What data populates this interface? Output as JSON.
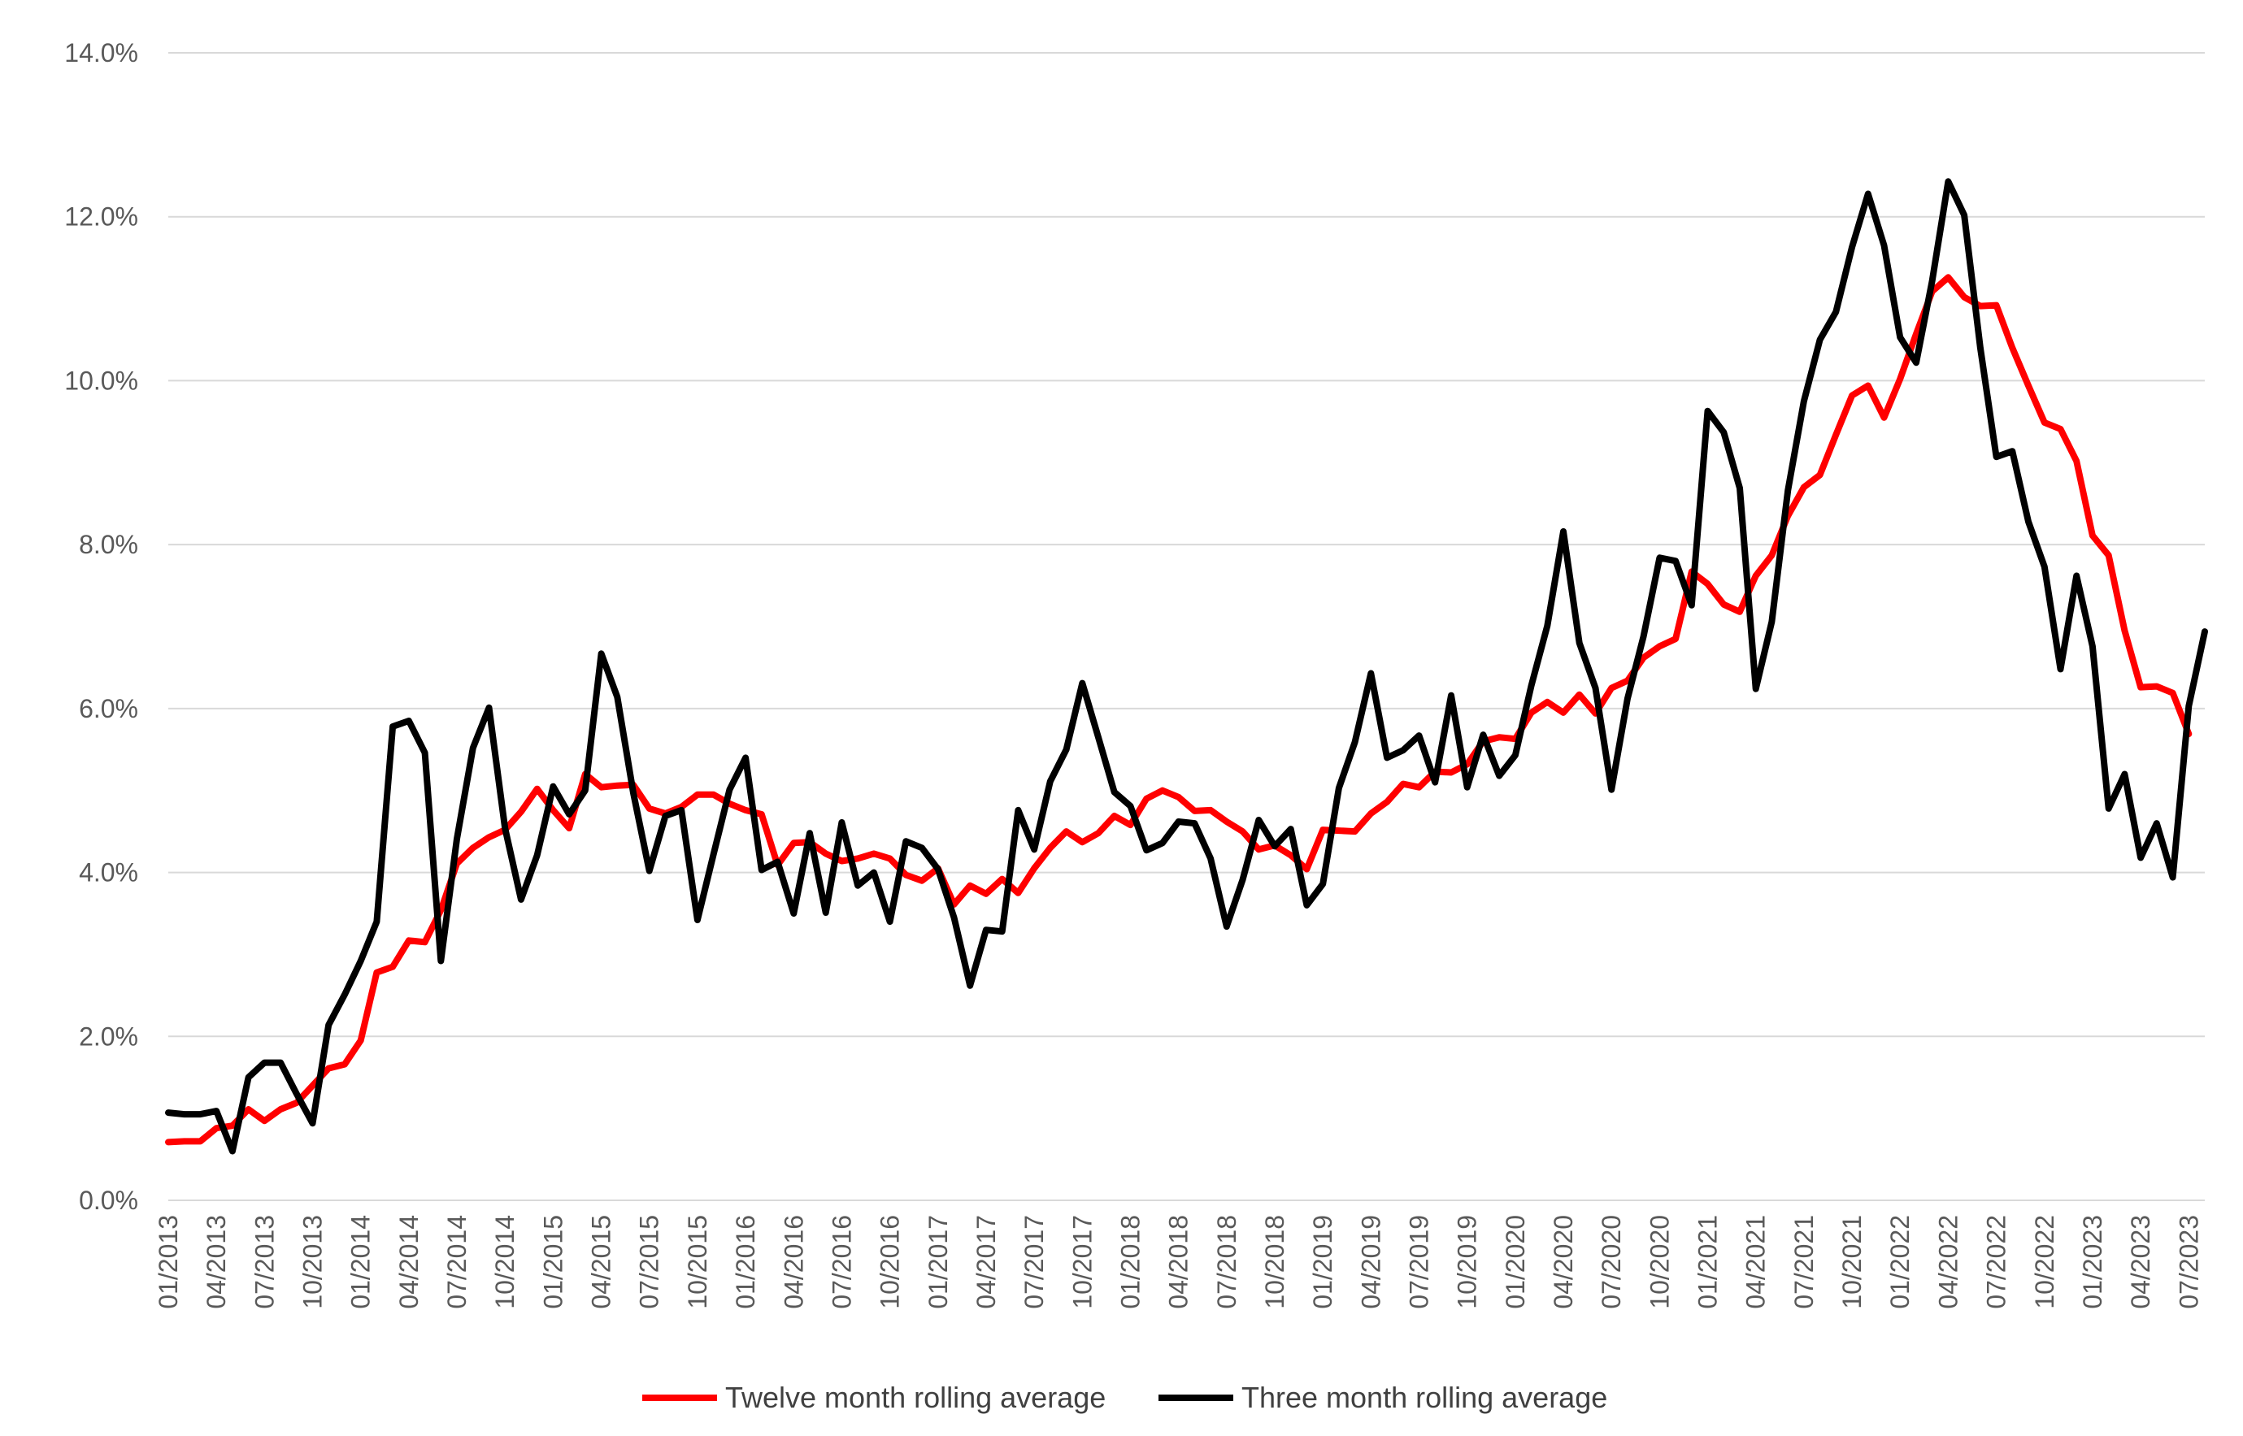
{
  "chart_data": {
    "type": "line",
    "title": "",
    "xlabel": "",
    "ylabel": "",
    "ylim": [
      0,
      0.14
    ],
    "yticks": [
      "0.0%",
      "2.0%",
      "4.0%",
      "6.0%",
      "8.0%",
      "10.0%",
      "12.0%",
      "14.0%"
    ],
    "ytick_values": [
      0,
      0.02,
      0.04,
      0.06,
      0.08,
      0.1,
      0.12,
      0.14
    ],
    "xticks": [
      "01/2013",
      "04/2013",
      "07/2013",
      "10/2013",
      "01/2014",
      "04/2014",
      "07/2014",
      "10/2014",
      "01/2015",
      "04/2015",
      "07/2015",
      "10/2015",
      "01/2016",
      "04/2016",
      "07/2016",
      "10/2016",
      "01/2017",
      "04/2017",
      "07/2017",
      "10/2017",
      "01/2018",
      "04/2018",
      "07/2018",
      "10/2018",
      "01/2019",
      "04/2019",
      "07/2019",
      "10/2019",
      "01/2020",
      "04/2020",
      "07/2020",
      "10/2020",
      "01/2021",
      "04/2021",
      "07/2021",
      "10/2021",
      "01/2022",
      "04/2022",
      "07/2022",
      "10/2022",
      "01/2023",
      "04/2023",
      "07/2023"
    ],
    "x_start": "01/2013",
    "x_end": "08/2023",
    "grid": "horizontal",
    "legend_position": "bottom",
    "series": [
      {
        "name": "Twelve month rolling average",
        "color": "#ff0000",
        "values": [
          0.0071,
          0.0072,
          0.0072,
          0.0088,
          0.0091,
          0.0111,
          0.0097,
          0.0111,
          0.0119,
          0.014,
          0.0161,
          0.0166,
          0.0195,
          0.0278,
          0.0285,
          0.0317,
          0.0315,
          0.0354,
          0.0411,
          0.043,
          0.0443,
          0.0452,
          0.0474,
          0.0502,
          0.0476,
          0.0454,
          0.052,
          0.0504,
          0.0506,
          0.0507,
          0.0478,
          0.0472,
          0.048,
          0.0495,
          0.0495,
          0.0484,
          0.0476,
          0.0471,
          0.0409,
          0.0436,
          0.0437,
          0.0423,
          0.0414,
          0.0417,
          0.0423,
          0.0417,
          0.0397,
          0.039,
          0.0405,
          0.0361,
          0.0384,
          0.0374,
          0.0392,
          0.0375,
          0.0405,
          0.043,
          0.045,
          0.0437,
          0.0448,
          0.0469,
          0.0458,
          0.049,
          0.05,
          0.0492,
          0.0475,
          0.0476,
          0.0462,
          0.045,
          0.0428,
          0.0433,
          0.0421,
          0.0404,
          0.0452,
          0.0451,
          0.045,
          0.0472,
          0.0486,
          0.0508,
          0.0504,
          0.0523,
          0.0522,
          0.0532,
          0.056,
          0.0565,
          0.0563,
          0.0595,
          0.0608,
          0.0595,
          0.0617,
          0.0594,
          0.0625,
          0.0634,
          0.0662,
          0.0676,
          0.0685,
          0.0767,
          0.0752,
          0.0727,
          0.0718,
          0.0762,
          0.0787,
          0.0835,
          0.087,
          0.0885,
          0.0934,
          0.0982,
          0.0994,
          0.0955,
          0.1002,
          0.1057,
          0.1109,
          0.1126,
          0.1102,
          0.1091,
          0.1092,
          0.104,
          0.0994,
          0.0949,
          0.0941,
          0.0902,
          0.0811,
          0.0787,
          0.0695,
          0.0626,
          0.0627,
          0.0619,
          0.0569
        ]
      },
      {
        "name": "Three month rolling average",
        "color": "#000000",
        "values": [
          0.0107,
          0.0105,
          0.0105,
          0.0109,
          0.006,
          0.015,
          0.0168,
          0.0168,
          0.013,
          0.0094,
          0.0214,
          0.0251,
          0.0292,
          0.034,
          0.0578,
          0.0585,
          0.0546,
          0.0292,
          0.0441,
          0.0552,
          0.0601,
          0.0454,
          0.0367,
          0.0421,
          0.0505,
          0.0471,
          0.05,
          0.0667,
          0.0614,
          0.0497,
          0.0402,
          0.0469,
          0.0476,
          0.0342,
          0.0422,
          0.0501,
          0.054,
          0.0403,
          0.0413,
          0.035,
          0.0448,
          0.0351,
          0.0461,
          0.0384,
          0.04,
          0.034,
          0.0438,
          0.043,
          0.0404,
          0.0345,
          0.0262,
          0.033,
          0.0328,
          0.0476,
          0.0428,
          0.0511,
          0.055,
          0.0631,
          0.0565,
          0.0498,
          0.0481,
          0.0427,
          0.0436,
          0.0462,
          0.046,
          0.0417,
          0.0334,
          0.0391,
          0.0464,
          0.0432,
          0.0453,
          0.036,
          0.0386,
          0.0503,
          0.0559,
          0.0643,
          0.054,
          0.0549,
          0.0567,
          0.051,
          0.0616,
          0.0504,
          0.0568,
          0.0518,
          0.0543,
          0.0628,
          0.0701,
          0.0816,
          0.068,
          0.0625,
          0.0501,
          0.0612,
          0.0688,
          0.0784,
          0.078,
          0.0726,
          0.0963,
          0.0937,
          0.0869,
          0.0624,
          0.0706,
          0.0866,
          0.0975,
          0.105,
          0.1084,
          0.1163,
          0.1228,
          0.1165,
          0.1053,
          0.1022,
          0.1122,
          0.1243,
          0.1202,
          0.104,
          0.0907,
          0.0914,
          0.0828,
          0.0773,
          0.0648,
          0.0762,
          0.0676,
          0.0478,
          0.052,
          0.0418,
          0.046,
          0.0394,
          0.0603,
          0.0694
        ]
      }
    ]
  }
}
